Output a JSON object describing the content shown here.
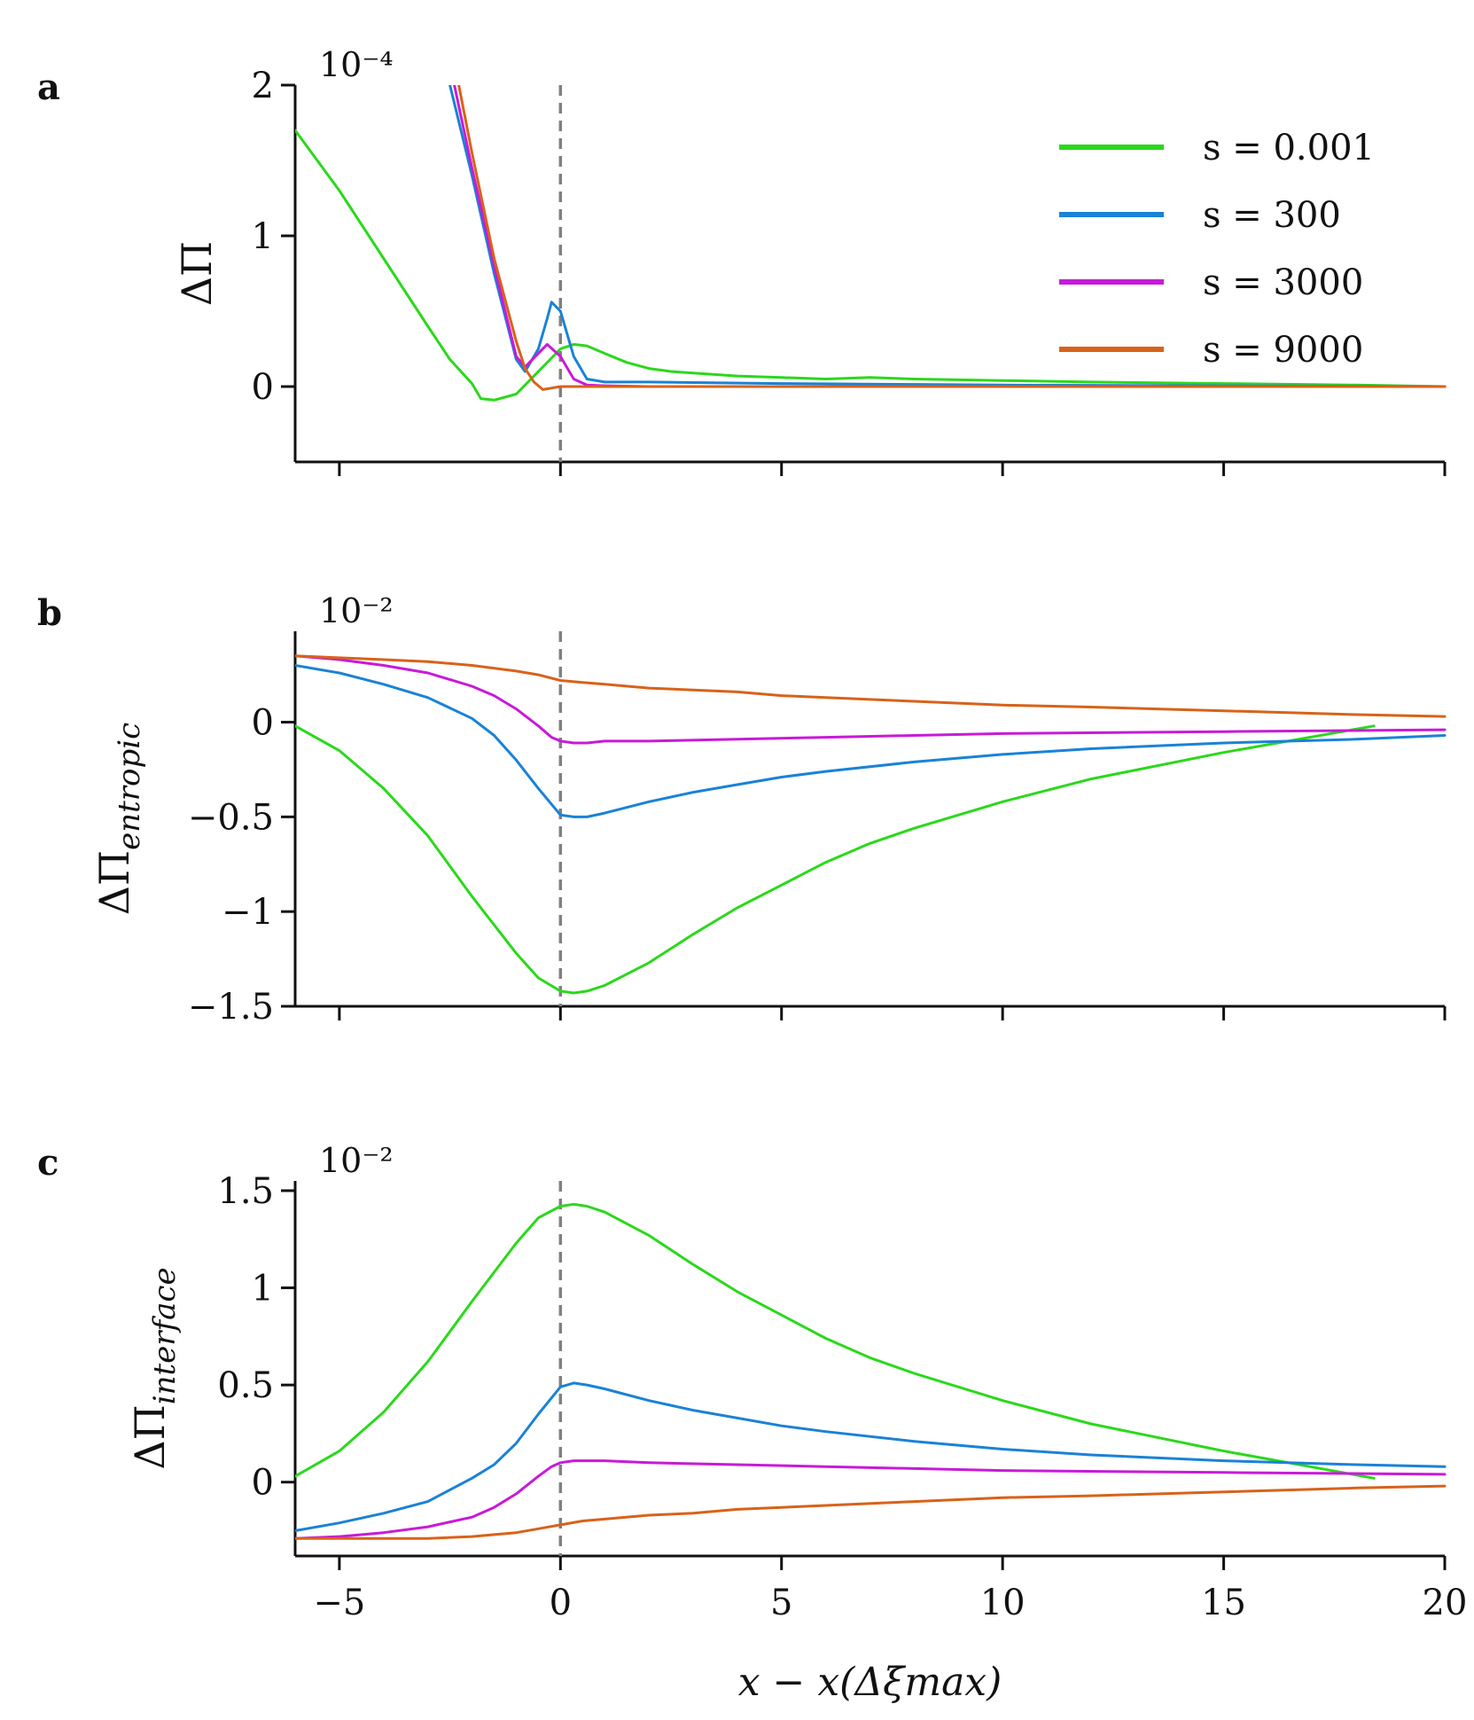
{
  "legend": {
    "entries": [
      {
        "label": "s = 0.001",
        "color": "#2bd81c"
      },
      {
        "label": "s = 300",
        "color": "#1a82d6"
      },
      {
        "label": "s = 3000",
        "color": "#c81ad8"
      },
      {
        "label": "s = 9000",
        "color": "#d8621a"
      }
    ]
  },
  "chart_data": [
    {
      "type": "line",
      "panel_label": "a",
      "ylabel": "ΔΠ",
      "ylabel_subscript": "",
      "scale_exponent_label": "10⁻⁴",
      "xlim": [
        -6,
        20
      ],
      "ylim": [
        -0.5,
        2
      ],
      "xticks": [
        -5,
        0,
        5,
        10,
        15,
        20
      ],
      "xtick_labels_visible": false,
      "yticks": [
        0,
        1,
        2
      ],
      "ytick_labels": [
        "0",
        "1",
        "2"
      ],
      "reference_line_x": 0,
      "series": [
        {
          "name": "s = 0.001",
          "color": "#2bd81c",
          "x": [
            -6,
            -5,
            -4,
            -3,
            -2.5,
            -2,
            -1.8,
            -1.5,
            -1,
            -0.5,
            0,
            0.3,
            0.6,
            1,
            1.5,
            2,
            2.5,
            3,
            4,
            5,
            6,
            7,
            8,
            10,
            12,
            15,
            18,
            20
          ],
          "y": [
            1.7,
            1.3,
            0.85,
            0.4,
            0.18,
            0.02,
            -0.08,
            -0.09,
            -0.05,
            0.1,
            0.25,
            0.28,
            0.27,
            0.22,
            0.16,
            0.12,
            0.1,
            0.09,
            0.07,
            0.06,
            0.05,
            0.06,
            0.05,
            0.04,
            0.03,
            0.02,
            0.01,
            0
          ]
        },
        {
          "name": "s = 300",
          "color": "#1a82d6",
          "x": [
            -2.5,
            -2,
            -1.5,
            -1,
            -0.8,
            -0.5,
            -0.3,
            -0.2,
            0,
            0.3,
            0.6,
            1,
            2,
            5,
            10,
            15,
            20
          ],
          "y": [
            2.0,
            1.4,
            0.75,
            0.18,
            0.1,
            0.25,
            0.45,
            0.56,
            0.5,
            0.2,
            0.05,
            0.03,
            0.03,
            0.02,
            0.01,
            0.005,
            0
          ]
        },
        {
          "name": "s = 3000",
          "color": "#c81ad8",
          "x": [
            -2.4,
            -2,
            -1.5,
            -1,
            -0.8,
            -0.5,
            -0.3,
            0,
            0.3,
            0.6,
            1,
            2,
            5,
            10,
            20
          ],
          "y": [
            2.0,
            1.45,
            0.8,
            0.2,
            0.13,
            0.22,
            0.28,
            0.2,
            0.05,
            0.01,
            0.005,
            0,
            0,
            0,
            0
          ]
        },
        {
          "name": "s = 9000",
          "color": "#d8621a",
          "x": [
            -2.3,
            -2,
            -1.5,
            -1,
            -0.8,
            -0.6,
            -0.4,
            -0.2,
            0,
            0.5,
            1,
            5,
            10,
            20
          ],
          "y": [
            2.0,
            1.55,
            0.85,
            0.3,
            0.12,
            0.03,
            -0.02,
            -0.01,
            0,
            0,
            0,
            0,
            0,
            0
          ]
        }
      ]
    },
    {
      "type": "line",
      "panel_label": "b",
      "ylabel": "ΔΠ",
      "ylabel_subscript": "entropic",
      "scale_exponent_label": "10⁻²",
      "xlim": [
        -6,
        20
      ],
      "ylim": [
        -1.5,
        0.48
      ],
      "xticks": [
        -5,
        0,
        5,
        10,
        15,
        20
      ],
      "xtick_labels_visible": false,
      "yticks": [
        0,
        -0.5,
        -1,
        -1.5
      ],
      "ytick_labels": [
        "0",
        "−0.5",
        "−1",
        "−1.5"
      ],
      "reference_line_x": 0,
      "series": [
        {
          "name": "s = 0.001",
          "color": "#2bd81c",
          "x": [
            -6,
            -5,
            -4,
            -3,
            -2,
            -1,
            -0.5,
            0,
            0.3,
            0.6,
            1,
            2,
            3,
            4,
            5,
            6,
            7,
            8,
            10,
            12,
            15,
            18.4
          ],
          "y": [
            -0.02,
            -0.15,
            -0.35,
            -0.6,
            -0.92,
            -1.22,
            -1.35,
            -1.42,
            -1.43,
            -1.42,
            -1.39,
            -1.27,
            -1.12,
            -0.98,
            -0.86,
            -0.74,
            -0.64,
            -0.56,
            -0.42,
            -0.3,
            -0.16,
            -0.02
          ]
        },
        {
          "name": "s = 300",
          "color": "#1a82d6",
          "x": [
            -6,
            -5,
            -4,
            -3,
            -2,
            -1.5,
            -1,
            -0.5,
            0,
            0.3,
            0.6,
            1,
            2,
            3,
            4,
            5,
            6,
            8,
            10,
            12,
            15,
            18,
            20
          ],
          "y": [
            0.3,
            0.26,
            0.2,
            0.13,
            0.02,
            -0.07,
            -0.2,
            -0.35,
            -0.49,
            -0.5,
            -0.5,
            -0.48,
            -0.42,
            -0.37,
            -0.33,
            -0.29,
            -0.26,
            -0.21,
            -0.17,
            -0.14,
            -0.11,
            -0.09,
            -0.07
          ]
        },
        {
          "name": "s = 3000",
          "color": "#c81ad8",
          "x": [
            -6,
            -5,
            -4,
            -3,
            -2,
            -1.5,
            -1,
            -0.5,
            -0.2,
            0,
            0.3,
            0.6,
            1,
            2,
            4,
            6,
            8,
            10,
            15,
            20
          ],
          "y": [
            0.35,
            0.33,
            0.3,
            0.26,
            0.19,
            0.14,
            0.07,
            -0.02,
            -0.08,
            -0.1,
            -0.11,
            -0.11,
            -0.1,
            -0.1,
            -0.09,
            -0.08,
            -0.07,
            -0.06,
            -0.05,
            -0.04
          ]
        },
        {
          "name": "s = 9000",
          "color": "#d8621a",
          "x": [
            -6,
            -5,
            -4,
            -3,
            -2,
            -1,
            -0.5,
            0,
            0.5,
            1,
            2,
            3,
            4,
            5,
            6,
            8,
            10,
            12,
            15,
            18,
            20
          ],
          "y": [
            0.35,
            0.34,
            0.33,
            0.32,
            0.3,
            0.27,
            0.25,
            0.22,
            0.21,
            0.2,
            0.18,
            0.17,
            0.16,
            0.14,
            0.13,
            0.11,
            0.09,
            0.08,
            0.06,
            0.04,
            0.03
          ]
        }
      ]
    },
    {
      "type": "line",
      "panel_label": "c",
      "ylabel": "ΔΠ",
      "ylabel_subscript": "interface",
      "scale_exponent_label": "10⁻²",
      "xlabel": "x − x(Δξmax)",
      "xlim": [
        -6,
        20
      ],
      "ylim": [
        -0.38,
        1.55
      ],
      "xticks": [
        -5,
        0,
        5,
        10,
        15,
        20
      ],
      "xtick_labels": [
        "−5",
        "0",
        "5",
        "10",
        "15",
        "20"
      ],
      "xtick_labels_visible": true,
      "yticks": [
        0,
        0.5,
        1,
        1.5
      ],
      "ytick_labels": [
        "0",
        "0.5",
        "1",
        "1.5"
      ],
      "reference_line_x": 0,
      "series": [
        {
          "name": "s = 0.001",
          "color": "#2bd81c",
          "x": [
            -6,
            -5,
            -4,
            -3,
            -2,
            -1,
            -0.5,
            0,
            0.3,
            0.6,
            1,
            2,
            3,
            4,
            5,
            6,
            7,
            8,
            10,
            12,
            15,
            18.4
          ],
          "y": [
            0.03,
            0.16,
            0.36,
            0.62,
            0.93,
            1.23,
            1.36,
            1.42,
            1.43,
            1.42,
            1.39,
            1.27,
            1.12,
            0.98,
            0.86,
            0.74,
            0.64,
            0.56,
            0.42,
            0.3,
            0.16,
            0.02
          ]
        },
        {
          "name": "s = 300",
          "color": "#1a82d6",
          "x": [
            -6,
            -5,
            -4,
            -3,
            -2,
            -1.5,
            -1,
            -0.5,
            0,
            0.3,
            0.6,
            1,
            2,
            3,
            4,
            5,
            6,
            8,
            10,
            12,
            15,
            18,
            20
          ],
          "y": [
            -0.25,
            -0.21,
            -0.16,
            -0.1,
            0.02,
            0.09,
            0.2,
            0.35,
            0.49,
            0.51,
            0.5,
            0.48,
            0.42,
            0.37,
            0.33,
            0.29,
            0.26,
            0.21,
            0.17,
            0.14,
            0.11,
            0.09,
            0.08
          ]
        },
        {
          "name": "s = 3000",
          "color": "#c81ad8",
          "x": [
            -6,
            -5,
            -4,
            -3,
            -2,
            -1.5,
            -1,
            -0.5,
            -0.2,
            0,
            0.3,
            0.6,
            1,
            2,
            4,
            6,
            8,
            10,
            15,
            20
          ],
          "y": [
            -0.29,
            -0.28,
            -0.26,
            -0.23,
            -0.18,
            -0.13,
            -0.06,
            0.03,
            0.08,
            0.1,
            0.11,
            0.11,
            0.11,
            0.1,
            0.09,
            0.08,
            0.07,
            0.06,
            0.05,
            0.04
          ]
        },
        {
          "name": "s = 9000",
          "color": "#d8621a",
          "x": [
            -6,
            -5,
            -4,
            -3,
            -2,
            -1.5,
            -1,
            -0.5,
            0,
            0.5,
            1,
            2,
            3,
            4,
            5,
            6,
            8,
            10,
            12,
            15,
            18,
            20
          ],
          "y": [
            -0.29,
            -0.29,
            -0.29,
            -0.29,
            -0.28,
            -0.27,
            -0.26,
            -0.24,
            -0.22,
            -0.2,
            -0.19,
            -0.17,
            -0.16,
            -0.14,
            -0.13,
            -0.12,
            -0.1,
            -0.08,
            -0.07,
            -0.05,
            -0.03,
            -0.02
          ]
        }
      ]
    }
  ]
}
